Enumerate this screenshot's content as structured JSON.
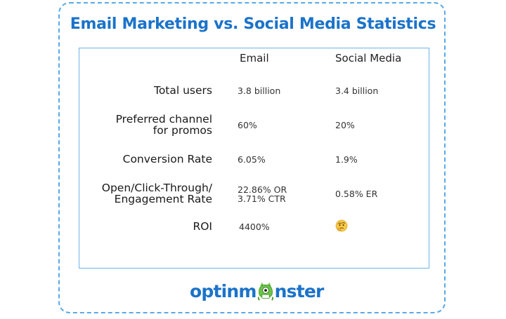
{
  "title": "Email Marketing vs. Social Media Statistics",
  "columns": {
    "email": "Email",
    "social": "Social Media"
  },
  "rows": [
    {
      "label_lines": [
        "Total users"
      ],
      "email_lines": [
        "3.8 billion"
      ],
      "social_lines": [
        "3.4 billion"
      ]
    },
    {
      "label_lines": [
        "Preferred channel",
        "for promos"
      ],
      "email_lines": [
        "60%"
      ],
      "social_lines": [
        "20%"
      ]
    },
    {
      "label_lines": [
        "Conversion Rate"
      ],
      "email_lines": [
        "6.05%"
      ],
      "social_lines": [
        "1.9%"
      ]
    },
    {
      "label_lines": [
        "Open/Click-Through/",
        "Engagement Rate"
      ],
      "email_lines": [
        "22.86% OR",
        "3.71% CTR"
      ],
      "social_lines": [
        "0.58% ER"
      ]
    },
    {
      "label_lines": [
        "ROI"
      ],
      "email_lines": [
        "4400%"
      ],
      "social_icon": "thinking-face-emoji"
    }
  ],
  "logo": {
    "text_before": "optinm",
    "text_after": "nster",
    "mascot_icon": "monster-mascot"
  },
  "colors": {
    "brand_blue": "#1b73c9",
    "border_blue": "#5aa9e6",
    "mascot_green": "#6cc24a"
  }
}
